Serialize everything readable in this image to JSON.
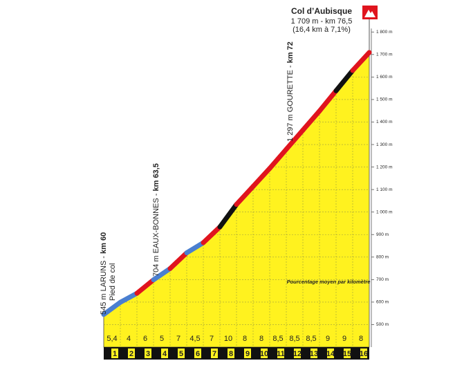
{
  "chart_data": {
    "type": "climb-profile",
    "summit": {
      "name": "Col d’Aubisque",
      "detail": "1 709 m - km 76,5",
      "stats": "(16,4 km à 7,1%)"
    },
    "start_altitude": 545,
    "note": "Pourcentage moyen par kilomètre",
    "categories": [
      "1",
      "2",
      "3",
      "4",
      "5",
      "6",
      "7",
      "8",
      "9",
      "10",
      "11",
      "12",
      "13",
      "14",
      "15",
      "16"
    ],
    "values": [
      5.4,
      4,
      6,
      5,
      7,
      4.5,
      7,
      10,
      8,
      8,
      8.5,
      8.5,
      8.5,
      9,
      9,
      8
    ],
    "value_labels": [
      "5,4",
      "4",
      "6",
      "5",
      "7",
      "4,5",
      "7",
      "10",
      "8",
      "8",
      "8,5",
      "8,5",
      "8,5",
      "9",
      "9",
      "8"
    ],
    "colors": [
      "#4a7fd0",
      "#4a7fd0",
      "#e0141e",
      "#4a7fd0",
      "#e0141e",
      "#4a7fd0",
      "#e0141e",
      "#111111",
      "#e0141e",
      "#e0141e",
      "#e0141e",
      "#e0141e",
      "#e0141e",
      "#e0141e",
      "#111111",
      "#e0141e"
    ],
    "ylim": [
      400,
      1850
    ],
    "yticks": [
      {
        "value": 500,
        "label": "500 m"
      },
      {
        "value": 600,
        "label": "600 m"
      },
      {
        "value": 700,
        "label": "700 m"
      },
      {
        "value": 800,
        "label": "800 m"
      },
      {
        "value": 900,
        "label": "900 m"
      },
      {
        "value": 1000,
        "label": "1 000 m"
      },
      {
        "value": 1100,
        "label": "1 100 m"
      },
      {
        "value": 1200,
        "label": "1 200 m"
      },
      {
        "value": 1300,
        "label": "1 300 m"
      },
      {
        "value": 1400,
        "label": "1 400 m"
      },
      {
        "value": 1500,
        "label": "1 500 m"
      },
      {
        "value": 1600,
        "label": "1 600 m"
      },
      {
        "value": 1700,
        "label": "1 700 m"
      },
      {
        "value": 1800,
        "label": "1 800 m"
      }
    ],
    "landmarks": [
      {
        "label": "545 m LARUNS - ",
        "km": "km 60",
        "note": "Pied de col"
      },
      {
        "label": "704 m EAUX-BONNES - ",
        "km": "km 63,5"
      },
      {
        "label": "1 297 m GOURETTE - ",
        "km": "km 72"
      }
    ]
  }
}
